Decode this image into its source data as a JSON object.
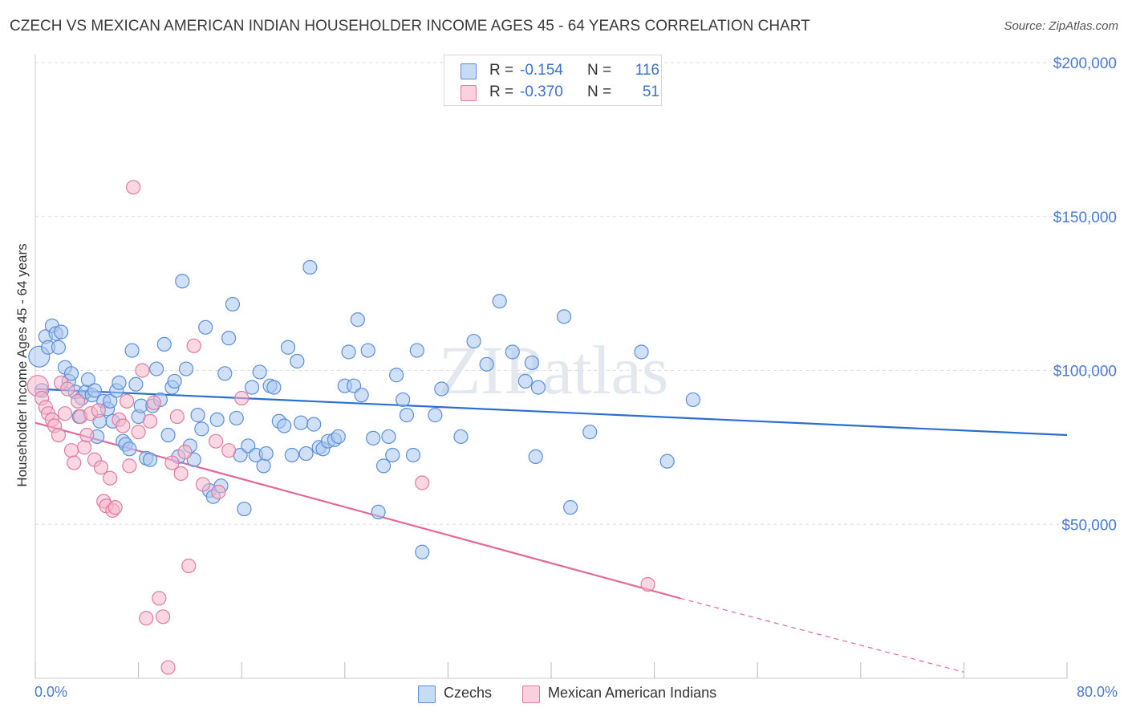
{
  "title": "CZECH VS MEXICAN AMERICAN INDIAN HOUSEHOLDER INCOME AGES 45 - 64 YEARS CORRELATION CHART",
  "source": "Source: ZipAtlas.com",
  "watermark": "ZIPatlas",
  "legend": {
    "rows": [
      {
        "r_label": "R =",
        "r_value": "-0.154",
        "n_label": "N =",
        "n_value": "116"
      },
      {
        "r_label": "R =",
        "r_value": "-0.370",
        "n_label": "N =",
        "n_value": "51"
      }
    ]
  },
  "x_axis": {
    "min_label": "0.0%",
    "max_label": "80.0%"
  },
  "colors": {
    "blue_fill": "#a9c6ef",
    "blue_stroke": "#5b8fd6",
    "blue_line": "#2a6fd0",
    "pink_fill": "#f6b7cb",
    "pink_stroke": "#e07aa0",
    "pink_line": "#e0699a",
    "axis_label": "#4a7bd0",
    "grid": "#dddddd"
  },
  "chart_data": {
    "type": "scatter",
    "title": "CZECH VS MEXICAN AMERICAN INDIAN HOUSEHOLDER INCOME AGES 45 - 64 YEARS CORRELATION CHART",
    "xlabel": "",
    "ylabel": "Householder Income Ages 45 - 64 years",
    "xlim": [
      0,
      80
    ],
    "ylim": [
      0,
      200000
    ],
    "y_ticks": [
      {
        "value": 50000,
        "label": "$50,000"
      },
      {
        "value": 100000,
        "label": "$100,000"
      },
      {
        "value": 150000,
        "label": "$150,000"
      },
      {
        "value": 200000,
        "label": "$200,000"
      }
    ],
    "grid": true,
    "legend_position": "top-center",
    "series": [
      {
        "name": "Czechs",
        "color": "#5b8fd6",
        "r": -0.154,
        "n": 116,
        "trend": {
          "x0": 0,
          "y0": 94000,
          "x1": 80,
          "y1": 79000
        },
        "points": [
          [
            0.3,
            104500
          ],
          [
            0.5,
            93500
          ],
          [
            0.8,
            111000
          ],
          [
            1.0,
            107500
          ],
          [
            1.3,
            114500
          ],
          [
            1.6,
            112000
          ],
          [
            1.8,
            107500
          ],
          [
            2.0,
            112500
          ],
          [
            2.3,
            101000
          ],
          [
            2.6,
            96500
          ],
          [
            2.8,
            99000
          ],
          [
            3.1,
            93000
          ],
          [
            3.4,
            85000
          ],
          [
            3.6,
            91000
          ],
          [
            3.9,
            93000
          ],
          [
            4.1,
            97000
          ],
          [
            4.4,
            92000
          ],
          [
            4.6,
            93500
          ],
          [
            4.8,
            78500
          ],
          [
            5.0,
            83500
          ],
          [
            5.3,
            90000
          ],
          [
            5.6,
            87500
          ],
          [
            5.8,
            90000
          ],
          [
            6.0,
            83500
          ],
          [
            6.3,
            93500
          ],
          [
            6.5,
            96000
          ],
          [
            6.8,
            77000
          ],
          [
            7.0,
            76000
          ],
          [
            7.3,
            74500
          ],
          [
            7.5,
            106500
          ],
          [
            7.8,
            95500
          ],
          [
            8.0,
            85000
          ],
          [
            8.2,
            88500
          ],
          [
            8.6,
            71500
          ],
          [
            8.9,
            71000
          ],
          [
            9.1,
            88500
          ],
          [
            9.4,
            100500
          ],
          [
            9.7,
            90500
          ],
          [
            10.0,
            108500
          ],
          [
            10.3,
            79000
          ],
          [
            10.6,
            94500
          ],
          [
            10.8,
            96500
          ],
          [
            11.1,
            72000
          ],
          [
            11.4,
            129000
          ],
          [
            11.7,
            100500
          ],
          [
            12.0,
            75500
          ],
          [
            12.3,
            71000
          ],
          [
            12.6,
            85500
          ],
          [
            12.9,
            81000
          ],
          [
            13.2,
            114000
          ],
          [
            13.5,
            61000
          ],
          [
            13.8,
            59000
          ],
          [
            14.1,
            84000
          ],
          [
            14.4,
            62500
          ],
          [
            14.7,
            99000
          ],
          [
            15.0,
            110500
          ],
          [
            15.3,
            121500
          ],
          [
            15.6,
            84500
          ],
          [
            15.9,
            72500
          ],
          [
            16.2,
            55000
          ],
          [
            16.5,
            75500
          ],
          [
            16.8,
            94500
          ],
          [
            17.1,
            72500
          ],
          [
            17.4,
            99500
          ],
          [
            17.7,
            69000
          ],
          [
            17.9,
            73000
          ],
          [
            18.2,
            95000
          ],
          [
            18.5,
            94500
          ],
          [
            18.9,
            83500
          ],
          [
            19.3,
            82000
          ],
          [
            19.6,
            107500
          ],
          [
            19.9,
            72500
          ],
          [
            20.3,
            103000
          ],
          [
            20.6,
            83000
          ],
          [
            21.0,
            73000
          ],
          [
            21.3,
            133500
          ],
          [
            21.6,
            82500
          ],
          [
            22.0,
            75000
          ],
          [
            22.3,
            74500
          ],
          [
            22.7,
            77000
          ],
          [
            23.2,
            77500
          ],
          [
            23.5,
            78500
          ],
          [
            24.0,
            95000
          ],
          [
            24.3,
            106000
          ],
          [
            24.7,
            95000
          ],
          [
            25.0,
            116500
          ],
          [
            25.3,
            92000
          ],
          [
            25.8,
            106500
          ],
          [
            26.2,
            78000
          ],
          [
            26.6,
            54000
          ],
          [
            27.0,
            69000
          ],
          [
            27.4,
            78500
          ],
          [
            27.7,
            72500
          ],
          [
            28.0,
            98500
          ],
          [
            28.5,
            90500
          ],
          [
            28.8,
            85500
          ],
          [
            29.3,
            72500
          ],
          [
            29.6,
            106500
          ],
          [
            30.0,
            41000
          ],
          [
            31.0,
            85500
          ],
          [
            31.5,
            94000
          ],
          [
            33.0,
            78500
          ],
          [
            34.0,
            109500
          ],
          [
            35.0,
            102000
          ],
          [
            36.0,
            122500
          ],
          [
            37.0,
            106000
          ],
          [
            38.0,
            96500
          ],
          [
            38.5,
            102500
          ],
          [
            38.8,
            72000
          ],
          [
            39.0,
            94500
          ],
          [
            41.0,
            117500
          ],
          [
            41.5,
            55500
          ],
          [
            43.0,
            80000
          ],
          [
            47.0,
            106000
          ],
          [
            49.0,
            70500
          ],
          [
            51.0,
            90500
          ]
        ]
      },
      {
        "name": "Mexican American Indians",
        "color": "#e07aa0",
        "r": -0.37,
        "n": 51,
        "trend": {
          "x0": 0,
          "y0": 83000,
          "x1": 50,
          "y1": 26000,
          "dash_x1": 72,
          "dash_y1": 2000
        },
        "points": [
          [
            0.2,
            95000
          ],
          [
            0.5,
            91000
          ],
          [
            0.8,
            88000
          ],
          [
            1.0,
            86000
          ],
          [
            1.3,
            84000
          ],
          [
            1.5,
            82000
          ],
          [
            1.8,
            79000
          ],
          [
            2.0,
            96000
          ],
          [
            2.3,
            86000
          ],
          [
            2.5,
            94000
          ],
          [
            2.8,
            74000
          ],
          [
            3.0,
            70000
          ],
          [
            3.3,
            90000
          ],
          [
            3.5,
            85000
          ],
          [
            3.8,
            75000
          ],
          [
            4.0,
            79000
          ],
          [
            4.3,
            86000
          ],
          [
            4.6,
            71000
          ],
          [
            4.9,
            87000
          ],
          [
            5.1,
            68500
          ],
          [
            5.3,
            57500
          ],
          [
            5.5,
            56000
          ],
          [
            5.8,
            65000
          ],
          [
            6.0,
            54500
          ],
          [
            6.2,
            55500
          ],
          [
            6.5,
            84000
          ],
          [
            6.8,
            82000
          ],
          [
            7.1,
            90000
          ],
          [
            7.3,
            69000
          ],
          [
            7.6,
            159500
          ],
          [
            8.0,
            80000
          ],
          [
            8.3,
            100000
          ],
          [
            8.6,
            19500
          ],
          [
            8.9,
            83500
          ],
          [
            9.2,
            89500
          ],
          [
            9.6,
            26000
          ],
          [
            9.9,
            20000
          ],
          [
            10.3,
            3500
          ],
          [
            10.6,
            70000
          ],
          [
            11.0,
            85000
          ],
          [
            11.3,
            66500
          ],
          [
            11.6,
            73500
          ],
          [
            11.9,
            36500
          ],
          [
            12.3,
            108000
          ],
          [
            13.0,
            63000
          ],
          [
            14.0,
            77000
          ],
          [
            14.2,
            60500
          ],
          [
            15.0,
            74000
          ],
          [
            16.0,
            91000
          ],
          [
            30.0,
            63500
          ],
          [
            47.5,
            30500
          ]
        ]
      }
    ]
  }
}
